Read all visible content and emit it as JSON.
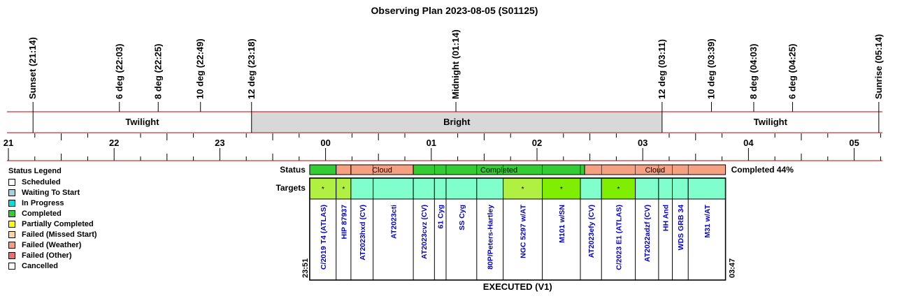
{
  "title": "Observing Plan 2023-08-05 (S01125)",
  "legend": {
    "title": "Status Legend",
    "items": [
      {
        "label": "Scheduled",
        "color": "#ffffff"
      },
      {
        "label": "Waiting To Start",
        "color": "#a8d0e0"
      },
      {
        "label": "In Progress",
        "color": "#00e0e0"
      },
      {
        "label": "Completed",
        "color": "#33cc33"
      },
      {
        "label": "Partially Completed",
        "color": "#ffff00"
      },
      {
        "label": "Failed (Missed Start)",
        "color": "#ffd8a0"
      },
      {
        "label": "Failed (Weather)",
        "color": "#f5a080"
      },
      {
        "label": "Failed (Other)",
        "color": "#f07070"
      },
      {
        "label": "Cancelled",
        "color": "#ffffff"
      }
    ]
  },
  "chart_data": {
    "type": "timeline",
    "title": "Observing Plan 2023-08-05 (S01125)",
    "time_axis": {
      "range_hours": [
        21.0,
        29.3
      ],
      "tick_labels": [
        {
          "h": 21,
          "label": "21"
        },
        {
          "h": 22,
          "label": "22"
        },
        {
          "h": 23,
          "label": "23"
        },
        {
          "h": 24,
          "label": "00"
        },
        {
          "h": 25,
          "label": "01"
        },
        {
          "h": 26,
          "label": "02"
        },
        {
          "h": 27,
          "label": "03"
        },
        {
          "h": 28,
          "label": "04"
        },
        {
          "h": 29,
          "label": "05"
        }
      ]
    },
    "events": [
      {
        "label": "Sunset (21:14)",
        "h": 21.233
      },
      {
        "label": "6 deg (22:03)",
        "h": 22.05
      },
      {
        "label": "8 deg (22:25)",
        "h": 22.417
      },
      {
        "label": "10 deg (22:49)",
        "h": 22.817
      },
      {
        "label": "12 deg (23:18)",
        "h": 23.3
      },
      {
        "label": "Midnight (01:14)",
        "h": 25.233
      },
      {
        "label": "12 deg (03:11)",
        "h": 27.183
      },
      {
        "label": "10 deg (03:39)",
        "h": 27.65
      },
      {
        "label": "8 deg (04:03)",
        "h": 28.05
      },
      {
        "label": "6 deg (04:25)",
        "h": 28.417
      },
      {
        "label": "Sunrise (05:14)",
        "h": 29.233
      }
    ],
    "sky_bands": [
      {
        "label": "Twilight",
        "start": 21.233,
        "end": 23.3,
        "color": "#ffffff"
      },
      {
        "label": "Bright",
        "start": 23.3,
        "end": 27.183,
        "color": "#d8d8d8"
      },
      {
        "label": "Twilight",
        "start": 27.183,
        "end": 29.233,
        "color": "#ffffff"
      }
    ],
    "executed": {
      "start_label": "23:51",
      "end_label": "03:47",
      "start_h": 23.85,
      "end_h": 27.783,
      "block_label": "EXECUTED (V1)"
    },
    "status_label": "Status",
    "targets_label": "Targets",
    "completion_text": "Completed 44%",
    "status_segments": [
      {
        "start": 23.85,
        "end": 24.1,
        "status": "Completed",
        "color": "#33cc33",
        "label": ""
      },
      {
        "start": 24.1,
        "end": 24.24,
        "status": "Failed (Weather)",
        "color": "#f5a080",
        "label": ""
      },
      {
        "start": 24.24,
        "end": 24.83,
        "status": "Failed (Weather)",
        "color": "#f5a080",
        "label": "Cloud"
      },
      {
        "start": 24.83,
        "end": 26.45,
        "status": "Completed",
        "color": "#33cc33",
        "label": "Completed"
      },
      {
        "start": 26.45,
        "end": 27.783,
        "status": "Failed (Weather)",
        "color": "#f5a080",
        "label": "Cloud"
      }
    ],
    "targets": [
      {
        "name": "C/2019 T4 (ATLAS)",
        "start": 23.85,
        "end": 24.1,
        "color": "#b0f040",
        "mark": "*"
      },
      {
        "name": "HIP 87937",
        "start": 24.1,
        "end": 24.24,
        "color": "#b0f040",
        "mark": "*"
      },
      {
        "name": "AT2023hxd (CV)",
        "start": 24.24,
        "end": 24.45,
        "color": "#80ffcc",
        "mark": ""
      },
      {
        "name": "AT2023cti",
        "start": 24.45,
        "end": 24.83,
        "color": "#80ffcc",
        "mark": ""
      },
      {
        "name": "AT2023cvz (CV)",
        "start": 24.83,
        "end": 25.03,
        "color": "#80ffcc",
        "mark": ""
      },
      {
        "name": "61 Cyg",
        "start": 25.03,
        "end": 25.14,
        "color": "#80ffcc",
        "mark": ""
      },
      {
        "name": "SS Cyg",
        "start": 25.14,
        "end": 25.43,
        "color": "#80ffcc",
        "mark": ""
      },
      {
        "name": "80P/Peters-Hartley",
        "start": 25.43,
        "end": 25.68,
        "color": "#80ffcc",
        "mark": ""
      },
      {
        "name": "NGC 5297 w/AT",
        "start": 25.68,
        "end": 26.05,
        "color": "#b0f040",
        "mark": "*"
      },
      {
        "name": "M101 w/SN",
        "start": 26.05,
        "end": 26.41,
        "color": "#80ee00",
        "mark": "*"
      },
      {
        "name": "AT2023efy (CV)",
        "start": 26.41,
        "end": 26.61,
        "color": "#80ffcc",
        "mark": ""
      },
      {
        "name": "C/2023 E1 (ATLAS)",
        "start": 26.61,
        "end": 26.93,
        "color": "#80ee00",
        "mark": "*"
      },
      {
        "name": "AT2022adzf (CV)",
        "start": 26.93,
        "end": 27.15,
        "color": "#80ffcc",
        "mark": ""
      },
      {
        "name": "HH And",
        "start": 27.15,
        "end": 27.28,
        "color": "#80ffcc",
        "mark": ""
      },
      {
        "name": "WDS GRB 34",
        "start": 27.28,
        "end": 27.43,
        "color": "#80ffcc",
        "mark": ""
      },
      {
        "name": "M31 w/AT",
        "start": 27.43,
        "end": 27.783,
        "color": "#80ffcc",
        "mark": ""
      }
    ],
    "colors": {
      "axis_line": "#c00000",
      "text_dark": "#000000",
      "target_text": "#0000cc"
    }
  }
}
